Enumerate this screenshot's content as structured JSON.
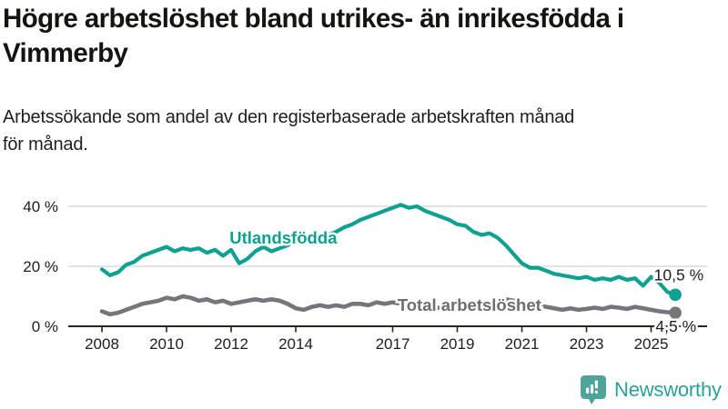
{
  "header": {
    "title_lines": [
      "Högre arbetslöshet bland utrikes- än inrikesfödda i",
      "Vimmerby"
    ],
    "subtitle_lines": [
      "Arbetssökande som andel av den registerbaserade arbetskraften månad",
      "för månad."
    ]
  },
  "chart_data": {
    "type": "line",
    "unit": "%",
    "x_start": 2008.0,
    "x_step_years": 0.25,
    "xlim": [
      2007.0,
      2026.7
    ],
    "ylim": [
      0,
      45
    ],
    "grid": "horizontal",
    "x_ticks": [
      2008,
      2010,
      2012,
      2014,
      2017,
      2019,
      2021,
      2023,
      2025
    ],
    "y_ticks": [
      {
        "value": 40,
        "label": "40 %"
      },
      {
        "value": 20,
        "label": "20 %"
      },
      {
        "value": 0,
        "label": "0 %"
      }
    ],
    "axis_color": "#26261f",
    "grid_color": "#dcdcdc",
    "tick_label_color": "#21211c",
    "end_label_color": "#1f1f1a",
    "series": [
      {
        "name": "Utlandsfödda",
        "color": "#0ca190",
        "label_color": "#0ca190",
        "line_label": {
          "text": "Utlandsfödda",
          "x": 2011.95,
          "y": 27.6
        },
        "end_label": "10,5 %",
        "end_value": 10.5,
        "values": [
          19,
          17,
          18,
          20.5,
          21.5,
          23.5,
          24.5,
          25.5,
          26.5,
          25,
          26,
          25.5,
          26,
          24.5,
          25.5,
          23.5,
          25.5,
          21,
          22.5,
          25,
          26.5,
          25,
          26,
          27,
          28.5,
          28,
          29,
          30,
          30.5,
          31.5,
          33,
          34,
          35.5,
          36.5,
          37.5,
          38.5,
          39.5,
          40.5,
          39.5,
          40,
          38.5,
          37.5,
          36.5,
          35.5,
          34,
          33.5,
          31.5,
          30.5,
          31,
          29.5,
          27,
          24,
          21,
          19.5,
          19.5,
          18.5,
          17.5,
          17,
          16.5,
          16,
          16.5,
          15.5,
          16,
          15.5,
          16.5,
          15.5,
          16,
          13.5,
          16.5,
          14.5,
          11.5,
          10.5
        ]
      },
      {
        "name": "Total arbetslöshet",
        "color": "#76757a",
        "label_color": "#6e6d72",
        "line_label": {
          "text": "Total arbetslöshet",
          "x": 2017.15,
          "y": 5.2
        },
        "end_label": "4,5 %",
        "end_value": 4.5,
        "values": [
          5,
          4,
          4.5,
          5.5,
          6.5,
          7.5,
          8,
          8.5,
          9.5,
          9,
          10,
          9.5,
          8.5,
          9,
          8,
          8.5,
          7.5,
          8,
          8.5,
          9,
          8.5,
          9,
          8.5,
          7.5,
          6,
          5.5,
          6.5,
          7,
          6.5,
          7,
          6.5,
          7.5,
          7.5,
          7,
          8,
          7.5,
          8,
          7.5,
          7,
          7.5,
          7,
          6.5,
          6,
          6.5,
          6,
          6.5,
          6,
          6.5,
          7,
          8.5,
          9,
          8.5,
          8,
          7.5,
          7,
          6.5,
          6,
          5.5,
          6,
          5.5,
          5.8,
          6.2,
          5.8,
          6.5,
          6.2,
          5.8,
          6.5,
          6,
          5.5,
          5,
          4.7,
          4.5
        ]
      }
    ]
  },
  "branding": {
    "logo_text": "Newsworthy",
    "logo_icon": "bar-chart-speech-bubble-icon",
    "brand_color": "#4ea49a",
    "brand_text_color": "#2ba097"
  }
}
